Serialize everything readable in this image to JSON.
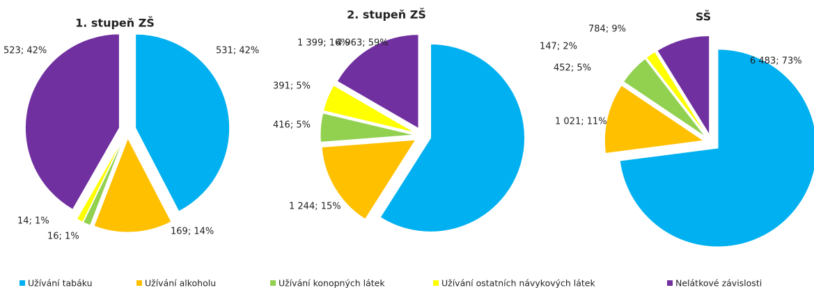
{
  "chart_data": [
    {
      "type": "pie",
      "title": "1. stupeň ZŠ",
      "categories": [
        "Užívání tabáku",
        "Užívání alkoholu",
        "Užívání konopných látek",
        "Užívání ostatních návykových látek",
        "Nelátkové závislosti"
      ],
      "colors": [
        "#00b0f0",
        "#ffc000",
        "#92d050",
        "#ffff00",
        "#7030a0"
      ],
      "values": [
        531,
        169,
        16,
        14,
        523
      ],
      "value_labels": [
        "531; 42%",
        "169; 14%",
        "16; 1%",
        "14; 1%",
        "523; 42%"
      ]
    },
    {
      "type": "pie",
      "title": "2. stupeň ZŠ",
      "categories": [
        "Užívání tabáku",
        "Užívání alkoholu",
        "Užívání konopných látek",
        "Užívání ostatních návykových látek",
        "Nelátkové závislosti"
      ],
      "colors": [
        "#00b0f0",
        "#ffc000",
        "#92d050",
        "#ffff00",
        "#7030a0"
      ],
      "values": [
        4963,
        1244,
        416,
        391,
        1399
      ],
      "value_labels": [
        "4 963; 59%",
        "1 244; 15%",
        "416; 5%",
        "391; 5%",
        "1 399; 16%"
      ]
    },
    {
      "type": "pie",
      "title": "SŠ",
      "categories": [
        "Užívání tabáku",
        "Užívání alkoholu",
        "Užívání konopných látek",
        "Užívání ostatních návykových látek",
        "Nelátkové závislosti"
      ],
      "colors": [
        "#00b0f0",
        "#ffc000",
        "#92d050",
        "#ffff00",
        "#7030a0"
      ],
      "values": [
        6483,
        1021,
        452,
        147,
        784
      ],
      "value_labels": [
        "6 483; 73%",
        "1 021; 11%",
        "452; 5%",
        "147; 2%",
        "784; 9%"
      ]
    }
  ]
}
